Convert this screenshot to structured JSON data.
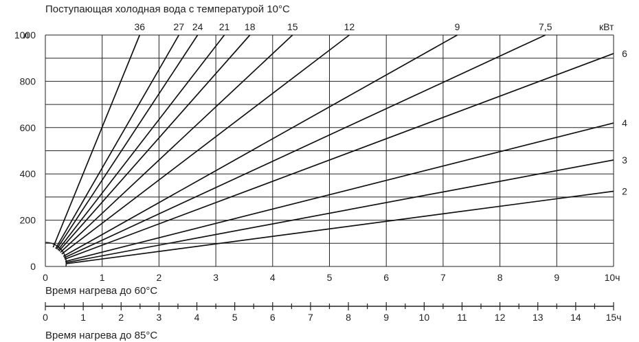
{
  "chart_data": {
    "type": "line",
    "title": "Поступающая холодная вода с температурой 10°C",
    "ylabel": "л",
    "ylim": [
      0,
      1000
    ],
    "xlim": [
      0,
      10
    ],
    "y_ticks": [
      "0",
      "200",
      "400",
      "600",
      "800",
      "1000"
    ],
    "x_ticks": [
      "0",
      "1",
      "2",
      "3",
      "4",
      "5",
      "6",
      "7",
      "8",
      "9",
      "10ч"
    ],
    "xlabel": "Время нагрева до 60°C",
    "x2_ticks": [
      "0",
      "1",
      "2",
      "3",
      "4",
      "5",
      "6",
      "7",
      "8",
      "9",
      "10",
      "11",
      "12",
      "13",
      "14",
      "15ч"
    ],
    "x2label": "Время нагрева до 85°C",
    "series_unit": "кВт",
    "grid": true,
    "series": [
      {
        "name": "36",
        "end": [
          1.66,
          1000
        ]
      },
      {
        "name": "27",
        "end": [
          2.35,
          1000
        ]
      },
      {
        "name": "24",
        "end": [
          2.68,
          1000
        ]
      },
      {
        "name": "21",
        "end": [
          3.15,
          1000
        ]
      },
      {
        "name": "18",
        "end": [
          3.6,
          1000
        ]
      },
      {
        "name": "15",
        "end": [
          4.35,
          1000
        ]
      },
      {
        "name": "12",
        "end": [
          5.35,
          1000
        ]
      },
      {
        "name": "9",
        "end": [
          7.25,
          1000
        ]
      },
      {
        "name": "7,5",
        "end": [
          8.8,
          1000
        ]
      },
      {
        "name": "6",
        "end": [
          10,
          920
        ]
      },
      {
        "name": "4",
        "end": [
          10,
          620
        ]
      },
      {
        "name": "3",
        "end": [
          10,
          460
        ]
      },
      {
        "name": "2",
        "end": [
          10,
          325
        ]
      }
    ]
  }
}
